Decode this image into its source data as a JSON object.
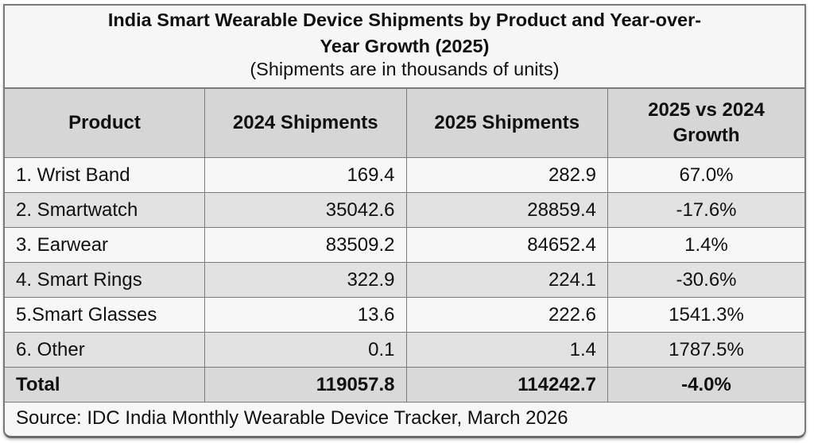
{
  "title": {
    "line1": "India Smart Wearable Device Shipments by Product and Year-over-",
    "line2": "Year Growth (2025)",
    "subtitle": "(Shipments are in thousands of units)"
  },
  "table": {
    "headers": [
      "Product",
      "2024 Shipments",
      "2025 Shipments",
      "2025 vs 2024 Growth"
    ],
    "rows": [
      [
        "1. Wrist Band",
        "169.4",
        "282.9",
        "67.0%"
      ],
      [
        "2. Smartwatch",
        "35042.6",
        "28859.4",
        "-17.6%"
      ],
      [
        "3. Earwear",
        "83509.2",
        "84652.4",
        "1.4%"
      ],
      [
        "4. Smart Rings",
        "322.9",
        "224.1",
        "-30.6%"
      ],
      [
        "5.Smart Glasses",
        "13.6",
        "222.6",
        "1541.3%"
      ],
      [
        "6. Other",
        "0.1",
        "1.4",
        "1787.5%"
      ]
    ],
    "total": [
      "Total",
      "119057.8",
      "114242.7",
      "-4.0%"
    ]
  },
  "source": "Source: IDC India Monthly Wearable Device Tracker, March 2026"
}
